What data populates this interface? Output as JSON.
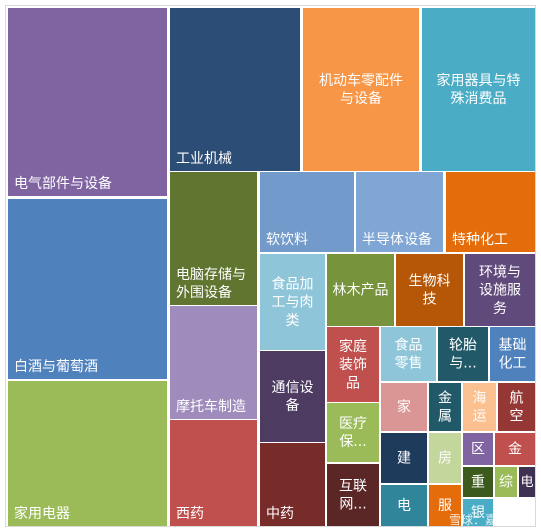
{
  "chart_data": {
    "type": "treemap",
    "tiles": [
      {
        "label": "电气部件与设备",
        "color": "#8064a2"
      },
      {
        "label": "白酒与葡萄酒",
        "color": "#4f81bd"
      },
      {
        "label": "家用电器",
        "color": "#9bbb59"
      },
      {
        "label": "工业机械",
        "color": "#2c4d75"
      },
      {
        "label": "机动车零配件与设备",
        "color": "#f79646"
      },
      {
        "label": "家用器具与特殊消费品",
        "color": "#4bacc6"
      },
      {
        "label": "电脑存储与外围设备",
        "color": "#5f7530"
      },
      {
        "label": "摩托车制造",
        "color": "#9f8bbc"
      },
      {
        "label": "西药",
        "color": "#c0504d"
      },
      {
        "label": "软饮料",
        "color": "#729aca"
      },
      {
        "label": "半导体设备",
        "color": "#7fa6d4"
      },
      {
        "label": "特种化工",
        "color": "#e46c0a"
      },
      {
        "label": "食品加工与肉类",
        "color": "#8ec5d8"
      },
      {
        "label": "林木产品",
        "color": "#77933c"
      },
      {
        "label": "生物科技",
        "color": "#b65708"
      },
      {
        "label": "环境与设施服务",
        "color": "#604a7b"
      },
      {
        "label": "通信设备",
        "color": "#4d3b62"
      },
      {
        "label": "中药",
        "color": "#772c2a"
      },
      {
        "label": "家庭装饰品",
        "color": "#c0504d"
      },
      {
        "label": "食品零售",
        "color": "#8ec5d8"
      },
      {
        "label": "轮胎与...",
        "color": "#215968"
      },
      {
        "label": "基础化工",
        "color": "#4f81bd"
      },
      {
        "label": "医疗保...",
        "color": "#9bbb59"
      },
      {
        "label": "互联网...",
        "color": "#5a2726"
      },
      {
        "label": "家",
        "color": "#d99694"
      },
      {
        "label": "金属",
        "color": "#215968"
      },
      {
        "label": "海运",
        "color": "#fac090"
      },
      {
        "label": "航空",
        "color": "#953735"
      },
      {
        "label": "建",
        "color": "#1f3b5c"
      },
      {
        "label": "房",
        "color": "#c3d69b"
      },
      {
        "label": "区",
        "color": "#8064a2"
      },
      {
        "label": "金",
        "color": "#c0504d"
      },
      {
        "label": "重",
        "color": "#3d5a1e"
      },
      {
        "label": "综",
        "color": "#9bbb59"
      },
      {
        "label": "电",
        "color": "#3f3151"
      },
      {
        "label": "电",
        "color": "#31859b"
      },
      {
        "label": "服",
        "color": "#e46c0a"
      },
      {
        "label": "银",
        "color": "#4bacc6"
      }
    ]
  },
  "watermark": "雪球：嘉腾投资"
}
